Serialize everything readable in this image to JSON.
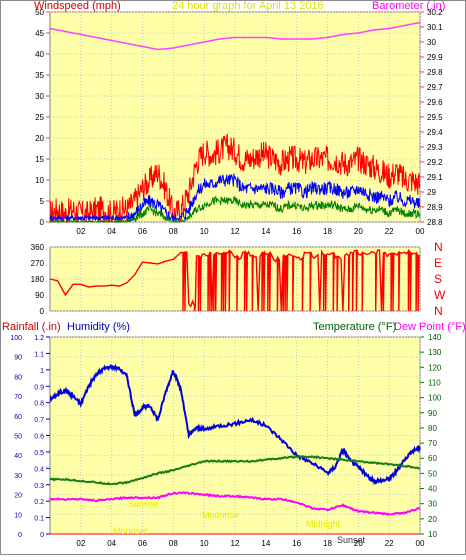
{
  "header": {
    "left_label": "Windspeed (mph)",
    "title": "24 hour graph for   April 13 2016",
    "right_label": "Barometer (.in)"
  },
  "colors": {
    "frame": "#8a8a8a",
    "plot_bg": "#ffffa8",
    "grid": "#c8c8c8",
    "axis_text": "#000000",
    "windspeed_label": "#d00000",
    "barometer_label": "#ff00ff",
    "title": "#e0e000",
    "gust": "#ff0000",
    "avg_wind": "#0000ff",
    "min_wind": "#008000",
    "barometer": "#ff40ff",
    "direction": "#ff0000",
    "rain_label": "#d00000",
    "humidity_label": "#0000c0",
    "temp_label": "#006000",
    "dew_label": "#ff00ff",
    "humidity": "#0000e0",
    "temperature": "#108010",
    "dewpoint": "#ff00ff",
    "annot": "#e8e800"
  },
  "chart_data": [
    {
      "type": "line",
      "name": "wind-barometer",
      "x_ticks": [
        "02",
        "04",
        "06",
        "08",
        "10",
        "12",
        "14",
        "16",
        "18",
        "20",
        "22",
        "00"
      ],
      "x_range": [
        0,
        24
      ],
      "y_left": {
        "label": "Windspeed (mph)",
        "range": [
          0,
          50
        ],
        "ticks": [
          "0",
          "5",
          "10",
          "15",
          "20",
          "25",
          "30",
          "35",
          "40",
          "45",
          "50"
        ]
      },
      "y_right": {
        "label": "Barometer (.in)",
        "range": [
          28.8,
          30.2
        ],
        "ticks": [
          "28.8",
          "28.9",
          "29",
          "29.1",
          "29.2",
          "29.3",
          "29.4",
          "29.5",
          "29.6",
          "29.7",
          "29.8",
          "29.9",
          "30",
          "30.1",
          "30.2"
        ]
      },
      "series": [
        {
          "name": "Gust",
          "axis": "left",
          "x": [
            0.0,
            0.5,
            1.0,
            1.5,
            2.0,
            2.5,
            3.0,
            3.5,
            4.0,
            4.5,
            5.0,
            5.5,
            6.0,
            6.5,
            7.0,
            7.5,
            8.0,
            8.5,
            9.0,
            9.5,
            10.0,
            10.5,
            11.0,
            11.5,
            12.0,
            12.5,
            13.0,
            13.5,
            14.0,
            14.5,
            15.0,
            15.5,
            16.0,
            16.5,
            17.0,
            17.5,
            18.0,
            18.5,
            19.0,
            19.5,
            20.0,
            20.5,
            21.0,
            21.5,
            22.0,
            22.5,
            23.0,
            23.5,
            24.0
          ],
          "y": [
            2,
            3,
            2,
            3,
            2,
            2,
            3,
            3,
            2,
            3,
            3,
            5,
            8,
            10,
            12,
            8,
            2,
            3,
            7,
            14,
            17,
            16,
            17,
            18,
            17,
            15,
            15,
            16,
            16,
            15,
            14,
            15,
            15,
            14,
            15,
            15,
            15,
            15,
            14,
            14,
            15,
            14,
            13,
            12,
            11,
            12,
            10,
            10,
            9
          ]
        },
        {
          "name": "Average",
          "axis": "left",
          "x": [
            0.0,
            0.5,
            1.0,
            1.5,
            2.0,
            2.5,
            3.0,
            3.5,
            4.0,
            4.5,
            5.0,
            5.5,
            6.0,
            6.5,
            7.0,
            7.5,
            8.0,
            8.5,
            9.0,
            9.5,
            10.0,
            10.5,
            11.0,
            11.5,
            12.0,
            12.5,
            13.0,
            13.5,
            14.0,
            14.5,
            15.0,
            15.5,
            16.0,
            16.5,
            17.0,
            17.5,
            18.0,
            18.5,
            19.0,
            19.5,
            20.0,
            20.5,
            21.0,
            21.5,
            22.0,
            22.5,
            23.0,
            23.5,
            24.0
          ],
          "y": [
            1,
            1,
            1,
            1,
            1,
            1,
            1,
            1,
            1,
            1,
            1,
            2,
            4,
            5,
            4,
            2,
            1,
            1,
            3,
            7,
            9,
            9,
            10,
            10,
            10,
            8,
            8,
            8,
            8,
            8,
            7,
            8,
            8,
            7,
            8,
            8,
            8,
            8,
            7,
            7,
            8,
            7,
            6,
            6,
            5,
            6,
            5,
            5,
            4
          ]
        },
        {
          "name": "Minimum",
          "axis": "left",
          "x": [
            0.0,
            0.5,
            1.0,
            1.5,
            2.0,
            2.5,
            3.0,
            3.5,
            4.0,
            4.5,
            5.0,
            5.5,
            6.0,
            6.5,
            7.0,
            7.5,
            8.0,
            8.5,
            9.0,
            9.5,
            10.0,
            10.5,
            11.0,
            11.5,
            12.0,
            12.5,
            13.0,
            13.5,
            14.0,
            14.5,
            15.0,
            15.5,
            16.0,
            16.5,
            17.0,
            17.5,
            18.0,
            18.5,
            19.0,
            19.5,
            20.0,
            20.5,
            21.0,
            21.5,
            22.0,
            22.5,
            23.0,
            23.5,
            24.0
          ],
          "y": [
            0,
            0,
            0,
            0,
            0,
            0,
            0,
            0,
            0,
            0,
            0,
            1,
            2,
            3,
            2,
            1,
            0,
            0,
            1,
            3,
            4,
            5,
            5,
            5,
            5,
            4,
            4,
            4,
            4,
            4,
            3,
            4,
            4,
            3,
            4,
            4,
            4,
            4,
            3,
            3,
            4,
            3,
            3,
            3,
            2,
            3,
            2,
            2,
            2
          ]
        },
        {
          "name": "Barometer",
          "axis": "right",
          "x": [
            0,
            1,
            2,
            3,
            4,
            5,
            6,
            7,
            8,
            9,
            10,
            11,
            12,
            13,
            14,
            15,
            16,
            17,
            18,
            19,
            20,
            21,
            22,
            23,
            24
          ],
          "y": [
            30.09,
            30.07,
            30.05,
            30.03,
            30.01,
            29.99,
            29.97,
            29.95,
            29.96,
            29.98,
            30.0,
            30.02,
            30.03,
            30.03,
            30.03,
            30.02,
            30.02,
            30.02,
            30.03,
            30.05,
            30.06,
            30.08,
            30.09,
            30.11,
            30.13
          ]
        }
      ]
    },
    {
      "type": "line",
      "name": "wind-direction",
      "x_range": [
        0,
        24
      ],
      "y_left": {
        "range": [
          0,
          360
        ],
        "ticks": [
          "0",
          "90",
          "180",
          "270",
          "360"
        ]
      },
      "y_right_labels": [
        "N",
        "W",
        "S",
        "E",
        "N"
      ],
      "series": [
        {
          "name": "Direction",
          "x": [
            0.0,
            0.5,
            1.0,
            1.5,
            2.0,
            2.5,
            3.0,
            3.5,
            4.0,
            4.5,
            5.0,
            5.5,
            6.0,
            6.5,
            7.0,
            7.5,
            8.0,
            8.5,
            9.0,
            9.5,
            10.0,
            10.5,
            11.0,
            11.5,
            12.0,
            12.5,
            13.0,
            13.5,
            14.0,
            14.5,
            15.0,
            15.5,
            16.0,
            16.5,
            17.0,
            17.5,
            18.0,
            18.5,
            19.0,
            19.5,
            20.0,
            20.5,
            21.0,
            21.5,
            22.0,
            22.5,
            23.0,
            23.5,
            24.0
          ],
          "y": [
            180,
            170,
            90,
            150,
            150,
            135,
            140,
            140,
            145,
            140,
            160,
            205,
            275,
            270,
            265,
            280,
            290,
            330,
            40,
            310,
            320,
            0,
            320,
            325,
            300,
            330,
            310,
            0,
            320,
            290,
            0,
            320,
            300,
            330,
            310,
            0,
            320,
            300,
            0,
            330,
            320,
            320,
            330,
            0,
            320,
            315,
            330,
            320,
            310
          ]
        }
      ]
    },
    {
      "type": "line",
      "name": "rain-humidity-temperature",
      "x_ticks": [
        "02",
        "04",
        "06",
        "08",
        "10",
        "12",
        "14",
        "16",
        "18",
        "20",
        "22",
        "00"
      ],
      "x_range": [
        0,
        24
      ],
      "labels": {
        "rainfall": "Rainfall (.in)",
        "humidity": "Humidity (%)",
        "temperature": "Temperature (°F)",
        "dewpoint": "Dew Point (°F)"
      },
      "y_hum": {
        "range": [
          0,
          100
        ],
        "ticks": [
          "0",
          "10",
          "20",
          "30",
          "40",
          "50",
          "60",
          "70",
          "80",
          "90",
          "100"
        ]
      },
      "y_rain": {
        "range": [
          0,
          1.2
        ],
        "ticks": [
          "0",
          "0.1",
          "0.2",
          "0.3",
          "0.4",
          "0.5",
          "0.6",
          "0.7",
          "0.8",
          "0.9",
          "1",
          "1.1",
          "1.2"
        ]
      },
      "y_temp": {
        "range": [
          10,
          140
        ],
        "ticks": [
          "10",
          "20",
          "30",
          "40",
          "50",
          "60",
          "70",
          "80",
          "90",
          "100",
          "110",
          "120",
          "130",
          "140"
        ]
      },
      "annotations": [
        "Moonset",
        "Sunrise",
        "Moonrise",
        "Sunset",
        "Midnight"
      ],
      "series": [
        {
          "name": "Humidity",
          "axis": "hum",
          "x": [
            0,
            0.5,
            1,
            1.5,
            2,
            2.5,
            3,
            3.5,
            4,
            4.5,
            5,
            5.5,
            6,
            6.5,
            7,
            7.5,
            8,
            8.5,
            9,
            9.5,
            10,
            11,
            12,
            13,
            14,
            15,
            16,
            17,
            18,
            18.5,
            19,
            19.5,
            20,
            20.5,
            21,
            21.5,
            22,
            22.5,
            23,
            23.5,
            24
          ],
          "y": [
            68,
            71,
            73,
            70,
            66,
            75,
            81,
            84,
            85,
            84,
            80,
            60,
            64,
            65,
            58,
            72,
            83,
            73,
            50,
            54,
            53,
            55,
            56,
            58,
            55,
            48,
            40,
            36,
            31,
            34,
            43,
            37,
            34,
            30,
            27,
            27,
            28,
            32,
            38,
            42,
            44
          ]
        },
        {
          "name": "Temperature",
          "axis": "temp",
          "x": [
            0,
            1,
            2,
            3,
            4,
            5,
            6,
            7,
            8,
            9,
            10,
            11,
            12,
            13,
            14,
            15,
            16,
            17,
            18,
            19,
            20,
            21,
            22,
            23,
            24
          ],
          "y": [
            46,
            46,
            45,
            44,
            43,
            44,
            47,
            50,
            52,
            55,
            58,
            58,
            58,
            58,
            59,
            60,
            61,
            61,
            60,
            59,
            58,
            57,
            56,
            55,
            53
          ]
        },
        {
          "name": "Dew Point",
          "axis": "temp",
          "x": [
            0,
            1,
            2,
            3,
            4,
            5,
            6,
            7,
            8,
            9,
            10,
            11,
            12,
            13,
            14,
            15,
            16,
            17,
            18,
            19,
            20,
            21,
            22,
            23,
            24
          ],
          "y": [
            33,
            33,
            33,
            32,
            33,
            34,
            34,
            34,
            37,
            37,
            36,
            35,
            35,
            34,
            33,
            33,
            31,
            27,
            26,
            29,
            25,
            24,
            23,
            24,
            27
          ]
        },
        {
          "name": "Rainfall",
          "axis": "rain",
          "x": [
            0,
            24
          ],
          "y": [
            0,
            0
          ]
        }
      ]
    }
  ],
  "bottom_annots": {
    "moonset": "Moonset",
    "sunrise": "Sunrise",
    "moonrise": "Moonrise",
    "sunset": "Sunset",
    "midnight": "Midnight"
  }
}
